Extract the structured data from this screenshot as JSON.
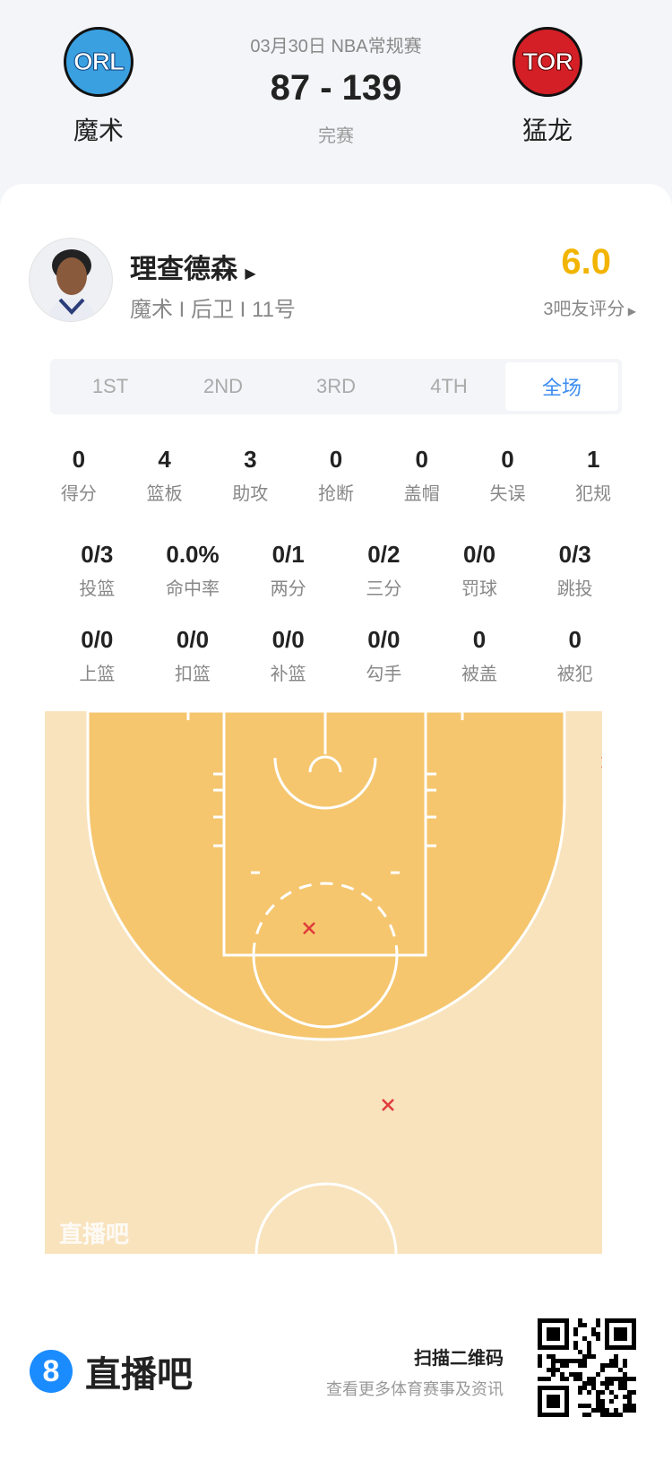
{
  "header": {
    "date_league": "03月30日 NBA常规赛",
    "score": "87 - 139",
    "status": "完赛",
    "home": {
      "abbr": "ORL",
      "name": "魔术",
      "color": "#1c87d2"
    },
    "away": {
      "abbr": "TOR",
      "name": "猛龙",
      "color": "#d51f26"
    }
  },
  "player": {
    "name": "理查德森",
    "info": "魔术 I 后卫 I 11号",
    "rating": "6.0",
    "rating_label": "3吧友评分"
  },
  "tabs": [
    {
      "label": "1ST"
    },
    {
      "label": "2ND"
    },
    {
      "label": "3RD"
    },
    {
      "label": "4TH"
    },
    {
      "label": "全场",
      "active": true
    }
  ],
  "stats_row1": [
    {
      "value": "0",
      "label": "得分"
    },
    {
      "value": "4",
      "label": "篮板"
    },
    {
      "value": "3",
      "label": "助攻"
    },
    {
      "value": "0",
      "label": "抢断"
    },
    {
      "value": "0",
      "label": "盖帽"
    },
    {
      "value": "0",
      "label": "失误"
    },
    {
      "value": "1",
      "label": "犯规"
    }
  ],
  "stats_row2": [
    {
      "value": "0/3",
      "label": "投篮"
    },
    {
      "value": "0.0%",
      "label": "命中率"
    },
    {
      "value": "0/1",
      "label": "两分"
    },
    {
      "value": "0/2",
      "label": "三分"
    },
    {
      "value": "0/0",
      "label": "罚球"
    },
    {
      "value": "0/3",
      "label": "跳投"
    }
  ],
  "stats_row3": [
    {
      "value": "0/0",
      "label": "上篮"
    },
    {
      "value": "0/0",
      "label": "扣篮"
    },
    {
      "value": "0/0",
      "label": "补篮"
    },
    {
      "value": "0/0",
      "label": "勾手"
    },
    {
      "value": "0",
      "label": "被盖"
    },
    {
      "value": "0",
      "label": "被犯"
    }
  ],
  "shot_chart": {
    "watermark": "直播吧",
    "miss_color": "#e03a3a",
    "shots": [
      {
        "result": "miss",
        "zone": "right corner three"
      },
      {
        "result": "miss",
        "zone": "mid-range"
      },
      {
        "result": "miss",
        "zone": "top three"
      }
    ]
  },
  "footer": {
    "brand": "直播吧",
    "scan_title": "扫描二维码",
    "scan_sub": "查看更多体育赛事及资讯"
  }
}
